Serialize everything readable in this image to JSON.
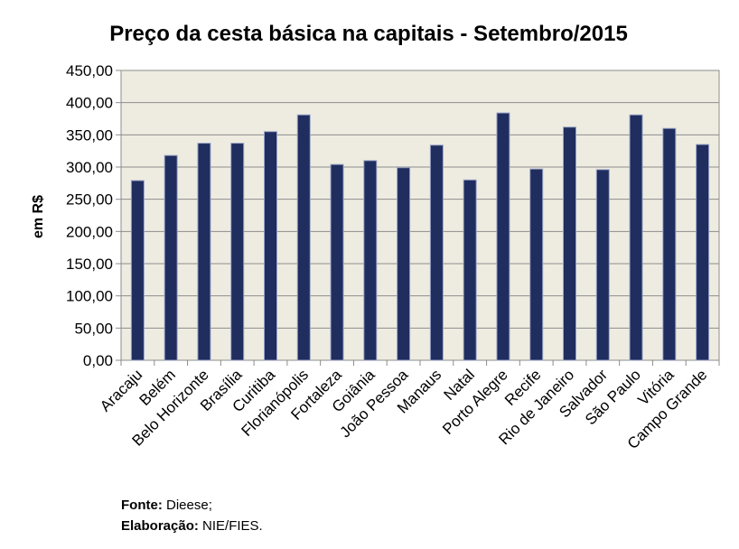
{
  "chart_data": {
    "type": "bar",
    "title": "Preço da cesta básica na capitais - Setembro/2015",
    "xlabel": "",
    "ylabel": "em R$",
    "ylim": [
      0,
      450
    ],
    "ytick_step": 50,
    "ytick_labels": [
      "0,00",
      "50,00",
      "100,00",
      "150,00",
      "200,00",
      "250,00",
      "300,00",
      "350,00",
      "400,00",
      "450,00"
    ],
    "grid": true,
    "plot_background": "#eeece1",
    "bar_color": "#1f2d5f",
    "categories": [
      "Aracaju",
      "Belém",
      "Belo Horizonte",
      "Brasília",
      "Curitiba",
      "Florianópolis",
      "Fortaleza",
      "Goiânia",
      "João Pessoa",
      "Manaus",
      "Natal",
      "Porto Alegre",
      "Recife",
      "Rio de Janeiro",
      "Salvador",
      "São Paulo",
      "Vitória",
      "Campo Grande"
    ],
    "values": [
      279,
      318,
      337,
      337,
      355,
      381,
      304,
      310,
      299,
      334,
      280,
      384,
      297,
      362,
      296,
      381,
      360,
      335
    ]
  },
  "footer": {
    "source_label": "Fonte:",
    "source_value": "Dieese;",
    "credit_label": "Elaboração:",
    "credit_value": "NIE/FIES."
  }
}
